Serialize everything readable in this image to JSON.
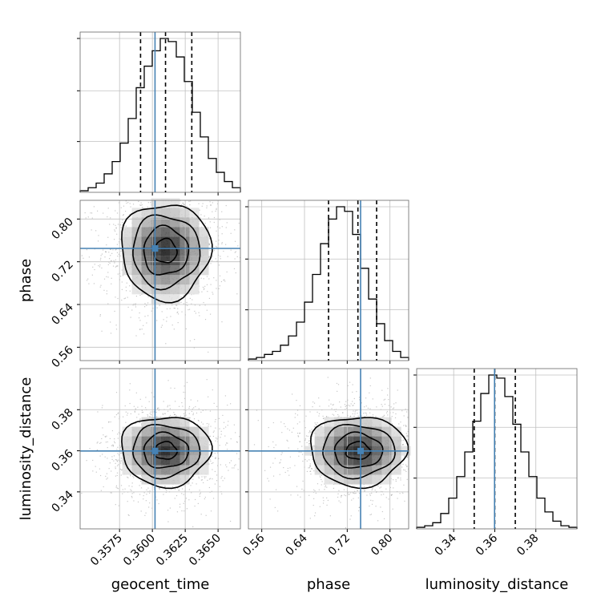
{
  "chart_data": {
    "type": "corner",
    "parameters": [
      "geocent_time",
      "phase",
      "luminosity_distance"
    ],
    "truths": {
      "geocent_time": 0.3602,
      "phase": 0.745,
      "luminosity_distance": 0.3599
    },
    "colors": {
      "truth": "#4682b4",
      "hist": "#000000",
      "grid": "#c0c0c0",
      "points": "#9a9a9a"
    },
    "ranges": {
      "geocent_time": [
        0.3545,
        0.3667
      ],
      "phase": [
        0.535,
        0.835
      ],
      "luminosity_distance": [
        0.322,
        0.4
      ]
    },
    "ticks": {
      "geocent_time": [
        "0.3575",
        "0.3600",
        "0.3625",
        "0.3650"
      ],
      "phase": [
        "0.56",
        "0.64",
        "0.72",
        "0.80"
      ],
      "luminosity_distance": [
        "0.34",
        "0.36",
        "0.38"
      ]
    },
    "quantiles": {
      "geocent_time": [
        0.3591,
        0.361,
        0.363
      ],
      "phase": [
        0.685,
        0.74,
        0.775
      ],
      "luminosity_distance": [
        0.35,
        0.36,
        0.37
      ]
    },
    "histograms": {
      "geocent_time": {
        "range": [
          0.3545,
          0.3667
        ],
        "counts": [
          1,
          3,
          6,
          12,
          20,
          32,
          48,
          68,
          82,
          92,
          100,
          98,
          88,
          72,
          52,
          36,
          22,
          13,
          7,
          3
        ]
      },
      "phase": {
        "range": [
          0.535,
          0.835
        ],
        "counts": [
          1,
          2,
          4,
          6,
          10,
          16,
          25,
          38,
          56,
          76,
          92,
          100,
          97,
          82,
          60,
          40,
          24,
          13,
          6,
          2
        ]
      },
      "luminosity_distance": {
        "range": [
          0.322,
          0.4
        ],
        "counts": [
          1,
          2,
          4,
          10,
          20,
          34,
          50,
          70,
          88,
          100,
          98,
          86,
          68,
          50,
          34,
          20,
          11,
          5,
          2,
          1
        ]
      }
    },
    "posterior_centers": {
      "geocent_time": 0.361,
      "phase": 0.74,
      "luminosity_distance": 0.36
    },
    "posterior_spread": {
      "geocent_time": 0.0017,
      "phase": 0.045,
      "luminosity_distance": 0.0085
    }
  }
}
